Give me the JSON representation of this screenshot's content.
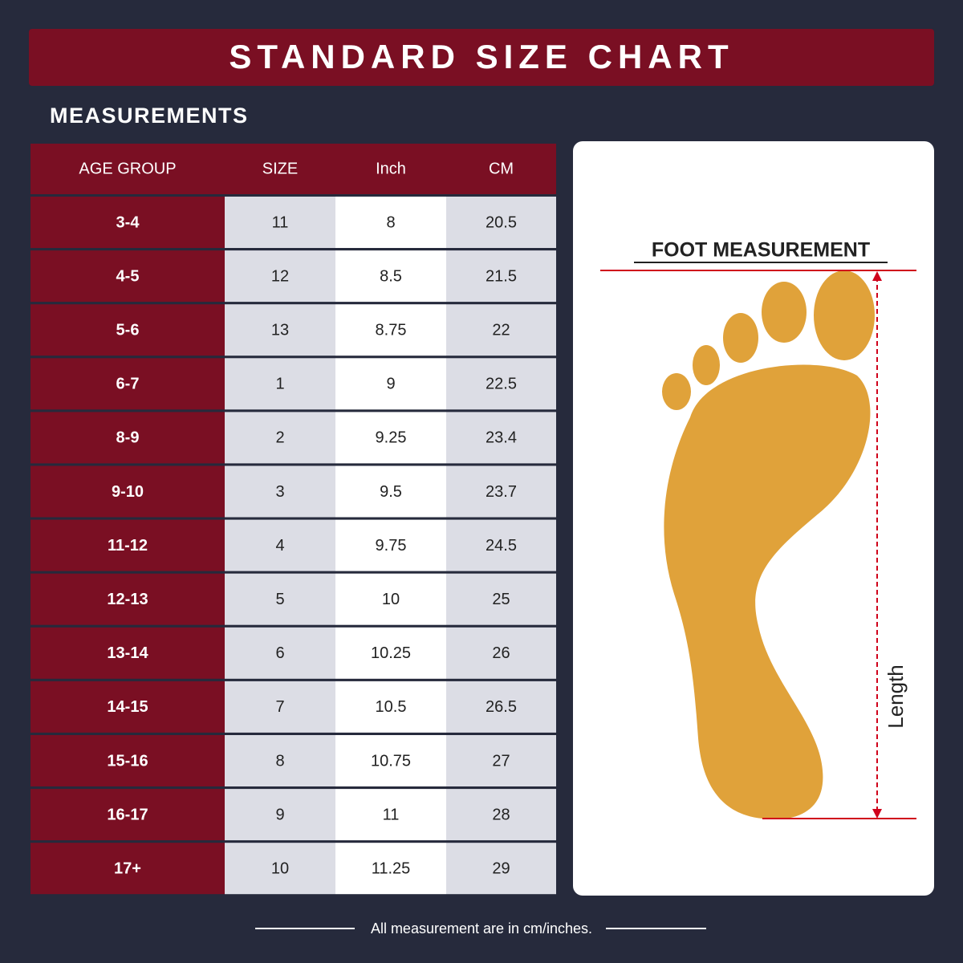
{
  "header": {
    "title": "STANDARD SIZE CHART",
    "subtitle": "MEASUREMENTS"
  },
  "table": {
    "columns": [
      "AGE GROUP",
      "SIZE",
      "Inch",
      "CM"
    ],
    "rows": [
      [
        "3-4",
        "11",
        "8",
        "20.5"
      ],
      [
        "4-5",
        "12",
        "8.5",
        "21.5"
      ],
      [
        "5-6",
        "13",
        "8.75",
        "22"
      ],
      [
        "6-7",
        "1",
        "9",
        "22.5"
      ],
      [
        "8-9",
        "2",
        "9.25",
        "23.4"
      ],
      [
        "9-10",
        "3",
        "9.5",
        "23.7"
      ],
      [
        "11-12",
        "4",
        "9.75",
        "24.5"
      ],
      [
        "12-13",
        "5",
        "10",
        "25"
      ],
      [
        "13-14",
        "6",
        "10.25",
        "26"
      ],
      [
        "14-15",
        "7",
        "10.5",
        "26.5"
      ],
      [
        "15-16",
        "8",
        "10.75",
        "27"
      ],
      [
        "16-17",
        "9",
        "11",
        "28"
      ],
      [
        "17+",
        "10",
        "11.25",
        "29"
      ]
    ]
  },
  "panel": {
    "title": "FOOT MEASUREMENT",
    "length_label": "Length"
  },
  "footer": {
    "note": "All measurement are in cm/inches."
  }
}
